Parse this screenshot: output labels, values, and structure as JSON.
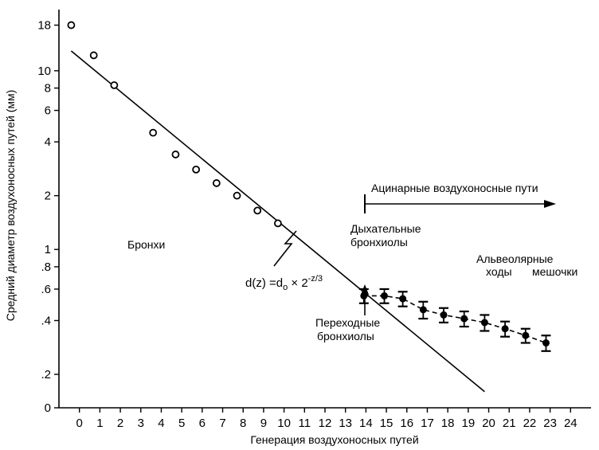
{
  "chart_data": {
    "type": "scatter",
    "xlabel": "Генерация воздухоносных путей",
    "ylabel": "Средний диаметр воздухоносных путей (мм)",
    "x_ticks": [
      0,
      1,
      2,
      3,
      4,
      5,
      6,
      7,
      8,
      9,
      10,
      11,
      12,
      13,
      14,
      15,
      16,
      17,
      18,
      19,
      20,
      21,
      22,
      23,
      24
    ],
    "y_ticks": [
      {
        "value": 0.13,
        "label": "0"
      },
      {
        "value": 0.2,
        "label": ".2"
      },
      {
        "value": 0.4,
        "label": ".4"
      },
      {
        "value": 0.6,
        "label": ".6"
      },
      {
        "value": 0.8,
        "label": ".8"
      },
      {
        "value": 1,
        "label": "1"
      },
      {
        "value": 2,
        "label": "2"
      },
      {
        "value": 4,
        "label": "4"
      },
      {
        "value": 6,
        "label": "6"
      },
      {
        "value": 8,
        "label": "8"
      },
      {
        "value": 10,
        "label": "10"
      },
      {
        "value": 18,
        "label": "18"
      }
    ],
    "yscale": "log",
    "xlim": [
      -1,
      25
    ],
    "ylim": [
      0.13,
      22
    ],
    "series": [
      {
        "marker": "open-circle",
        "points": [
          {
            "x": -0.4,
            "y": 18
          },
          {
            "x": 0.7,
            "y": 12.2
          },
          {
            "x": 1.7,
            "y": 8.3
          },
          {
            "x": 3.6,
            "y": 4.5
          },
          {
            "x": 4.7,
            "y": 3.4
          },
          {
            "x": 5.7,
            "y": 2.8
          },
          {
            "x": 6.7,
            "y": 2.35
          },
          {
            "x": 7.7,
            "y": 2.0
          },
          {
            "x": 8.7,
            "y": 1.65
          },
          {
            "x": 9.7,
            "y": 1.4
          }
        ]
      },
      {
        "marker": "filled-circle-errorbar",
        "connected": "dashed",
        "points": [
          {
            "x": 13.9,
            "y": 0.55,
            "err": 0.05
          },
          {
            "x": 14.9,
            "y": 0.55,
            "err": 0.05
          },
          {
            "x": 15.8,
            "y": 0.53,
            "err": 0.05
          },
          {
            "x": 16.8,
            "y": 0.46,
            "err": 0.05
          },
          {
            "x": 17.8,
            "y": 0.43,
            "err": 0.04
          },
          {
            "x": 18.8,
            "y": 0.41,
            "err": 0.04
          },
          {
            "x": 19.8,
            "y": 0.39,
            "err": 0.04
          },
          {
            "x": 20.8,
            "y": 0.36,
            "err": 0.035
          },
          {
            "x": 21.8,
            "y": 0.33,
            "err": 0.03
          },
          {
            "x": 22.8,
            "y": 0.3,
            "err": 0.03
          }
        ]
      }
    ],
    "fit_line": {
      "x": [
        -0.4,
        19.8
      ],
      "y": [
        12.9,
        0.16
      ]
    },
    "annotations": {
      "bronchi": "Бронхи",
      "acinar": "Ацинарные воздухоносные пути",
      "respiratory_line1": "Дыхательные",
      "respiratory_line2": "бронхиолы",
      "alveolar_ducts_line1": "Альвеолярные",
      "alveolar_ducts_line2": "ходы",
      "alveolar_sacs": "мешочки",
      "transitional_line1": "Переходные",
      "transitional_line2": "бронхиолы",
      "formula_main": "d(z) =d",
      "formula_sub": "o",
      "formula_times": " × 2",
      "formula_exp": "-z/3"
    }
  }
}
